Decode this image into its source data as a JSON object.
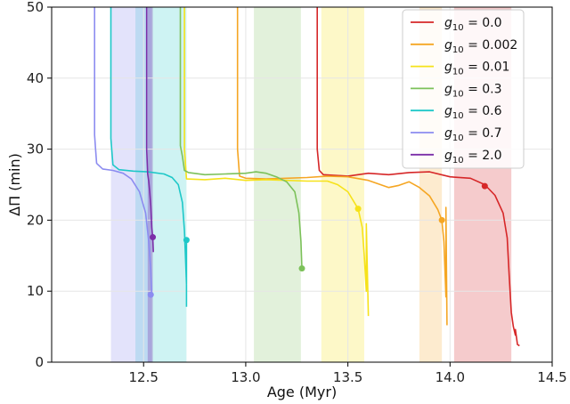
{
  "chart_data": {
    "type": "line",
    "xlabel": "Age (Myr)",
    "ylabel": "ΔΠ (min)",
    "xlim": [
      12.05,
      14.5
    ],
    "ylim": [
      0,
      50
    ],
    "xticks": [
      "12.5",
      "13.0",
      "13.5",
      "14.0",
      "14.5"
    ],
    "xtick_values": [
      12.5,
      13.0,
      13.5,
      14.0,
      14.5
    ],
    "yticks": [
      "0",
      "10",
      "20",
      "30",
      "40",
      "50"
    ],
    "ytick_values": [
      0,
      10,
      20,
      30,
      40,
      50
    ],
    "grid": true,
    "legend_position": "top-right",
    "series": [
      {
        "name": "g10 = 0.0",
        "legend_label": "0.0",
        "color": "#d62728",
        "band": [
          14.02,
          14.3
        ],
        "band_opacity": 0.24,
        "points": [
          [
            13.35,
            51
          ],
          [
            13.35,
            30
          ],
          [
            13.36,
            27.0
          ],
          [
            13.38,
            26.4
          ],
          [
            13.5,
            26.2
          ],
          [
            13.6,
            26.6
          ],
          [
            13.7,
            26.4
          ],
          [
            13.8,
            26.7
          ],
          [
            13.9,
            26.8
          ],
          [
            14.0,
            26.1
          ],
          [
            14.1,
            25.9
          ],
          [
            14.17,
            25.0
          ],
          [
            14.22,
            23.5
          ],
          [
            14.26,
            21.0
          ],
          [
            14.28,
            17.5
          ],
          [
            14.29,
            12.0
          ],
          [
            14.3,
            7.0
          ],
          [
            14.31,
            5.0
          ],
          [
            14.32,
            3.8
          ],
          [
            14.32,
            4.6
          ],
          [
            14.33,
            2.5
          ],
          [
            14.34,
            2.3
          ]
        ],
        "marker": [
          14.17,
          24.8
        ]
      },
      {
        "name": "g10 = 0.002",
        "legend_label": "0.002",
        "color": "#f5a623",
        "band": [
          13.85,
          13.96
        ],
        "band_opacity": 0.22,
        "points": [
          [
            12.96,
            51
          ],
          [
            12.96,
            30
          ],
          [
            12.97,
            26.2
          ],
          [
            13.0,
            25.9
          ],
          [
            13.1,
            25.8
          ],
          [
            13.2,
            25.9
          ],
          [
            13.3,
            26.0
          ],
          [
            13.4,
            26.2
          ],
          [
            13.5,
            26.1
          ],
          [
            13.6,
            25.6
          ],
          [
            13.7,
            24.6
          ],
          [
            13.75,
            24.9
          ],
          [
            13.8,
            25.4
          ],
          [
            13.85,
            24.6
          ],
          [
            13.9,
            23.4
          ],
          [
            13.94,
            21.5
          ],
          [
            13.96,
            20.0
          ],
          [
            13.97,
            17.0
          ],
          [
            13.975,
            13.0
          ],
          [
            13.98,
            9.2
          ],
          [
            13.98,
            21.8
          ],
          [
            13.985,
            5.2
          ]
        ],
        "marker": [
          13.96,
          20.0
        ]
      },
      {
        "name": "g10 = 0.01",
        "legend_label": "0.01",
        "color": "#f6e21a",
        "band": [
          13.37,
          13.58
        ],
        "band_opacity": 0.24,
        "points": [
          [
            12.7,
            51
          ],
          [
            12.7,
            30
          ],
          [
            12.71,
            25.8
          ],
          [
            12.8,
            25.7
          ],
          [
            12.9,
            25.9
          ],
          [
            13.0,
            25.6
          ],
          [
            13.1,
            25.7
          ],
          [
            13.2,
            25.6
          ],
          [
            13.3,
            25.5
          ],
          [
            13.4,
            25.5
          ],
          [
            13.45,
            25.0
          ],
          [
            13.5,
            24.0
          ],
          [
            13.55,
            21.6
          ],
          [
            13.57,
            19.0
          ],
          [
            13.58,
            15.0
          ],
          [
            13.59,
            10.0
          ],
          [
            13.59,
            19.5
          ],
          [
            13.6,
            6.5
          ]
        ],
        "marker": [
          13.55,
          21.6
        ]
      },
      {
        "name": "g10 = 0.3",
        "legend_label": "0.3",
        "color": "#7cc15a",
        "band": [
          13.04,
          13.27
        ],
        "band_opacity": 0.22,
        "points": [
          [
            12.68,
            51
          ],
          [
            12.68,
            30.5
          ],
          [
            12.69,
            29.0
          ],
          [
            12.7,
            27.0
          ],
          [
            12.72,
            26.7
          ],
          [
            12.8,
            26.4
          ],
          [
            12.9,
            26.5
          ],
          [
            13.0,
            26.6
          ],
          [
            13.05,
            26.8
          ],
          [
            13.1,
            26.6
          ],
          [
            13.15,
            26.1
          ],
          [
            13.2,
            25.4
          ],
          [
            13.24,
            24.0
          ],
          [
            13.26,
            21.0
          ],
          [
            13.27,
            17.0
          ],
          [
            13.275,
            13.2
          ]
        ],
        "marker": [
          13.275,
          13.2
        ]
      },
      {
        "name": "g10 = 0.6",
        "legend_label": "0.6",
        "color": "#1ec8c8",
        "band": [
          12.46,
          12.71
        ],
        "band_opacity": 0.22,
        "points": [
          [
            12.34,
            51
          ],
          [
            12.34,
            31.5
          ],
          [
            12.35,
            27.8
          ],
          [
            12.38,
            27.1
          ],
          [
            12.45,
            26.9
          ],
          [
            12.52,
            26.8
          ],
          [
            12.6,
            26.5
          ],
          [
            12.64,
            26.0
          ],
          [
            12.67,
            25.0
          ],
          [
            12.69,
            22.5
          ],
          [
            12.7,
            18.5
          ],
          [
            12.705,
            15.0
          ],
          [
            12.71,
            11.0
          ],
          [
            12.71,
            17.2
          ],
          [
            12.71,
            7.8
          ]
        ],
        "marker": [
          12.71,
          17.2
        ]
      },
      {
        "name": "g10 = 0.7",
        "legend_label": "0.7",
        "color": "#8c8cf0",
        "band": [
          12.34,
          12.54
        ],
        "band_opacity": 0.24,
        "points": [
          [
            12.26,
            51
          ],
          [
            12.26,
            32.0
          ],
          [
            12.265,
            30.0
          ],
          [
            12.27,
            28.0
          ],
          [
            12.3,
            27.2
          ],
          [
            12.35,
            27.0
          ],
          [
            12.4,
            26.6
          ],
          [
            12.44,
            25.8
          ],
          [
            12.48,
            24.0
          ],
          [
            12.51,
            21.0
          ],
          [
            12.525,
            17.0
          ],
          [
            12.535,
            13.0
          ],
          [
            12.54,
            9.5
          ]
        ],
        "marker": [
          12.535,
          9.5
        ]
      },
      {
        "name": "g10 = 2.0",
        "legend_label": "2.0",
        "color": "#7b2fa8",
        "band": [
          12.52,
          12.545
        ],
        "band_opacity": 0.3,
        "points": [
          [
            12.515,
            51
          ],
          [
            12.515,
            30.0
          ],
          [
            12.52,
            26.5
          ],
          [
            12.525,
            25.5
          ],
          [
            12.53,
            24.0
          ],
          [
            12.535,
            22.0
          ],
          [
            12.54,
            19.0
          ],
          [
            12.545,
            17.6
          ],
          [
            12.548,
            15.5
          ]
        ],
        "marker": [
          12.545,
          17.6
        ]
      }
    ]
  }
}
